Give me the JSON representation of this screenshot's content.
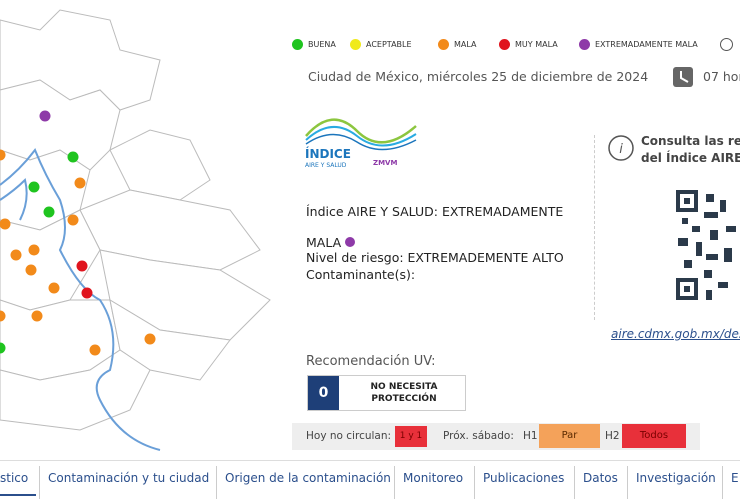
{
  "legend": {
    "items": [
      "BUENA",
      "ACEPTABLE",
      "MALA",
      "MUY MALA",
      "EXTREMADAMENTE MALA"
    ]
  },
  "header": {
    "date": "Ciudad de México, miércoles 25 de diciembre de 2024",
    "time": "07 hor"
  },
  "logo": {
    "title": "ÍNDICE",
    "subtitle": "AIRE Y SALUD",
    "badge": "ZMVM"
  },
  "status": {
    "index": "Índice AIRE Y SALUD: EXTREMADAMENTE MALA",
    "risk": "Nivel de riesgo: EXTREMADEMENTE ALTO",
    "pollutants": "Contaminante(s):"
  },
  "consult": {
    "lines": [
      "Consulta las rec",
      "del Índice AIRE Y"
    ],
    "link": "aire.cdmx.gob.mx/des"
  },
  "uv": {
    "label": "Recomendación UV:",
    "value": "0",
    "advice": "NO NECESITA PROTECCIÓN"
  },
  "circulation": {
    "today_label": "Hoy no circulan:",
    "today": "1 y 1",
    "next_label": "Próx. sábado:",
    "h1": "H1",
    "h1_value": "Par",
    "h2": "H2",
    "h2_value": "Todos"
  },
  "nav": {
    "items": [
      "stico",
      "Contaminación y tu ciudad",
      "Origen de la contaminación",
      "Monitoreo",
      "Publicaciones",
      "Datos",
      "Investigación",
      "E"
    ]
  }
}
